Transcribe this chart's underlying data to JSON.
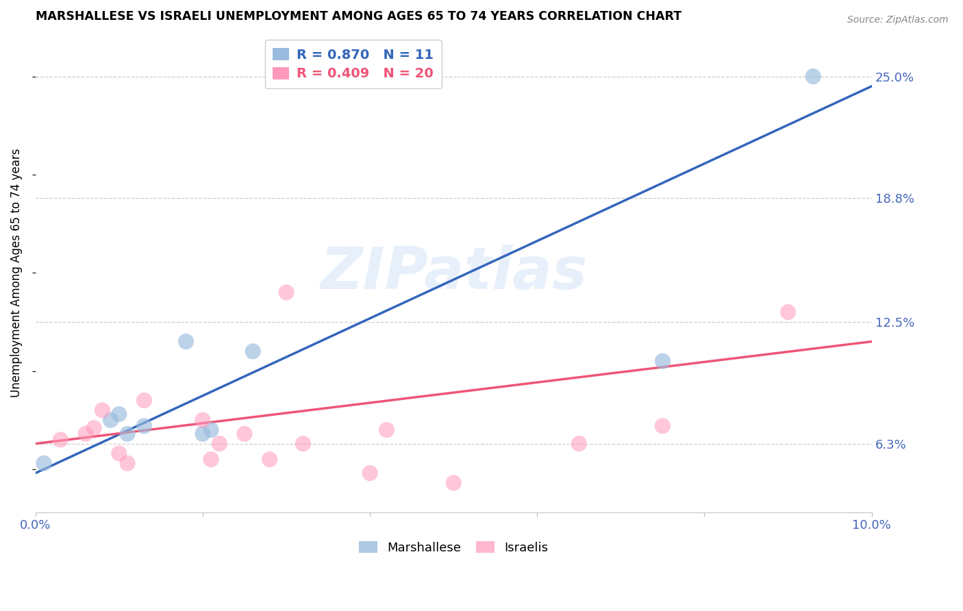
{
  "title": "MARSHALLESE VS ISRAELI UNEMPLOYMENT AMONG AGES 65 TO 74 YEARS CORRELATION CHART",
  "source": "Source: ZipAtlas.com",
  "ylabel": "Unemployment Among Ages 65 to 74 years",
  "xlim": [
    0.0,
    0.1
  ],
  "ylim": [
    0.028,
    0.272
  ],
  "blue_R": "0.870",
  "blue_N": "11",
  "pink_R": "0.409",
  "pink_N": "20",
  "blue_color": "#99BBDD",
  "pink_color": "#FF99BB",
  "blue_line_color": "#3366BB",
  "pink_line_color": "#EE5577",
  "watermark": "ZIPatlas",
  "legend_label_blue": "Marshallese",
  "legend_label_pink": "Israelis",
  "ytick_labels": [
    "6.3%",
    "12.5%",
    "18.8%",
    "25.0%"
  ],
  "ytick_values": [
    0.063,
    0.125,
    0.188,
    0.25
  ],
  "marshallese_x": [
    0.001,
    0.009,
    0.01,
    0.011,
    0.013,
    0.018,
    0.02,
    0.021,
    0.026,
    0.075,
    0.093
  ],
  "marshallese_y": [
    0.053,
    0.075,
    0.078,
    0.068,
    0.072,
    0.115,
    0.068,
    0.07,
    0.11,
    0.105,
    0.25
  ],
  "israelis_x": [
    0.003,
    0.006,
    0.007,
    0.008,
    0.01,
    0.011,
    0.013,
    0.02,
    0.021,
    0.022,
    0.025,
    0.028,
    0.03,
    0.032,
    0.04,
    0.042,
    0.05,
    0.065,
    0.075,
    0.09
  ],
  "israelis_y": [
    0.065,
    0.068,
    0.071,
    0.08,
    0.058,
    0.053,
    0.085,
    0.075,
    0.055,
    0.063,
    0.068,
    0.055,
    0.14,
    0.063,
    0.048,
    0.07,
    0.043,
    0.063,
    0.072,
    0.13
  ],
  "blue_line_x": [
    0.0,
    0.1
  ],
  "blue_line_y": [
    0.048,
    0.245
  ],
  "pink_line_x": [
    0.0,
    0.1
  ],
  "pink_line_y": [
    0.063,
    0.115
  ],
  "background_color": "#FFFFFF",
  "grid_color": "#CCCCCC"
}
